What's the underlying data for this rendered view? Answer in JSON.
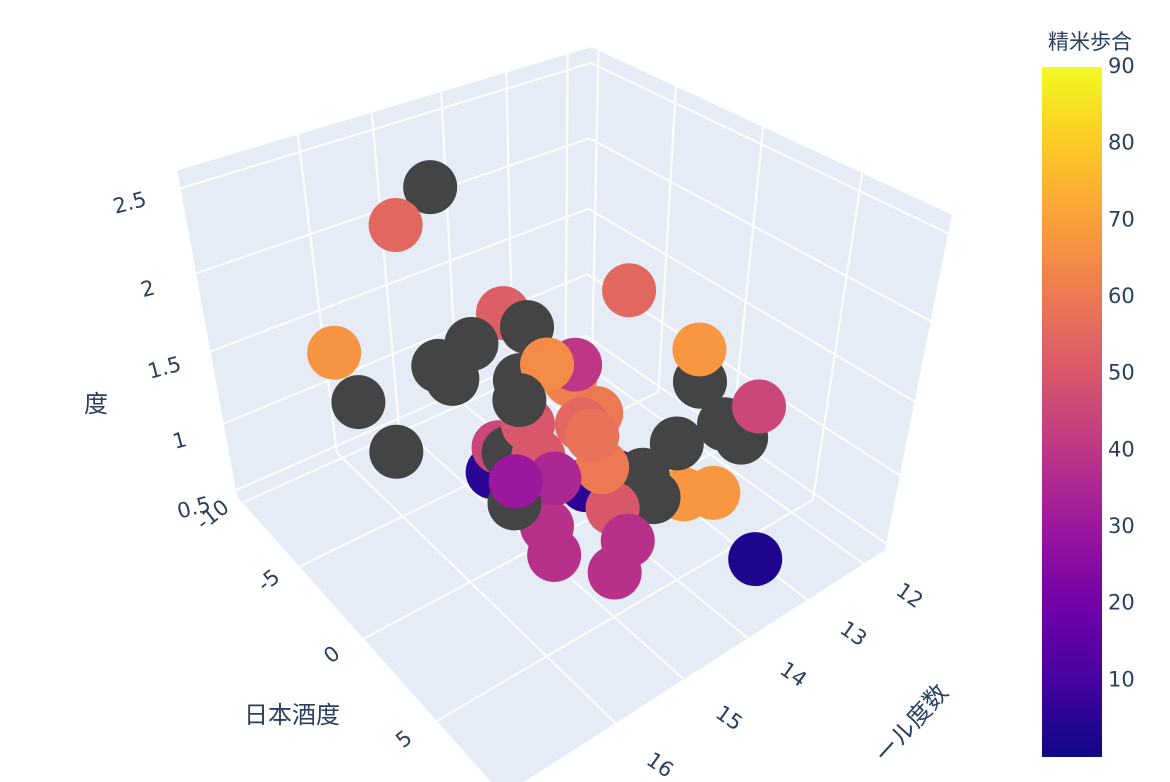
{
  "chart_data": {
    "type": "scatter3d",
    "xaxis_title": "日本酒度",
    "yaxis_title": "ール度数",
    "zaxis_title": "度",
    "x": [
      -6.5,
      -6.5,
      -9.6,
      -7.9,
      -5.05,
      1.45,
      -1.9,
      -0.4,
      -1.65,
      -1.4,
      -0.5,
      -0.9,
      1.3,
      0.8,
      0.4,
      5.25,
      5.4,
      0.1,
      8.25,
      1.7,
      3.45,
      -0.1,
      0.55,
      2.4,
      3.7,
      2.8,
      7.6,
      -0.55,
      2.9,
      3.15,
      3.15,
      5.1,
      3.4,
      5.0,
      5.45,
      2.9,
      5.6,
      6.8,
      7.5,
      4.05,
      3.35,
      3.25,
      4.7,
      4.45,
      2.85,
      1.8
    ],
    "y": [
      15,
      15.5,
      16,
      16,
      16,
      14,
      15,
      15,
      15.5,
      16,
      16,
      15,
      15.5,
      15,
      14.5,
      14,
      14,
      14.5,
      14,
      14.5,
      15,
      15.5,
      15.5,
      15.5,
      13,
      13.5,
      14,
      15.5,
      14.5,
      15,
      16,
      14.5,
      13.5,
      13.5,
      16,
      15.5,
      15,
      15.5,
      13.5,
      15,
      15.5,
      16,
      15,
      14.5,
      15,
      15.5
    ],
    "z": [
      2.37,
      2.22,
      1.27,
      1.05,
      0.93,
      2.09,
      1.9,
      1.92,
      1.82,
      1.8,
      1.79,
      1.55,
      1.7,
      1.78,
      1.65,
      2.01,
      1.83,
      1.53,
      1.91,
      1.44,
      1.55,
      1.28,
      1.3,
      1.44,
      1.21,
      1.11,
      1.67,
      1.07,
      1.12,
      1.2,
      1.32,
      1.18,
      0.8,
      0.96,
      1.21,
      1.02,
      1.06,
      1.1,
      0.73,
      1.4,
      1.38,
      1.47,
      1.19,
      1.27,
      1.57,
      1.59
    ],
    "color": [
      null,
      55,
      67,
      null,
      null,
      55,
      52,
      null,
      null,
      null,
      null,
      null,
      null,
      65,
      40,
      68,
      null,
      62,
      45,
      60,
      58,
      45,
      null,
      50,
      null,
      null,
      null,
      5,
      5,
      5,
      null,
      null,
      68,
      68,
      38,
      38,
      38,
      38,
      3,
      60,
      35,
      30,
      50,
      null,
      55,
      50
    ],
    "missing_color": "#444444",
    "xlim": [
      -10.5,
      9
    ],
    "ylim": [
      11.6,
      17.5
    ],
    "zlim": [
      0.45,
      2.6
    ],
    "xticks": [
      -10,
      -5,
      0,
      5
    ],
    "yticks": [
      12,
      13,
      14,
      15,
      16
    ],
    "zticks": [
      0.5,
      1,
      1.5,
      2,
      2.5
    ],
    "grid": true,
    "colorbar": {
      "title": "精米歩合",
      "clim": [
        0,
        90
      ],
      "ticks": [
        10,
        20,
        30,
        40,
        50,
        60,
        70,
        80,
        90
      ],
      "colorscale": [
        [
          0,
          "#0d0887"
        ],
        [
          0.111,
          "#46039f"
        ],
        [
          0.222,
          "#7201a8"
        ],
        [
          0.333,
          "#9c179e"
        ],
        [
          0.444,
          "#bd3786"
        ],
        [
          0.556,
          "#d8576b"
        ],
        [
          0.667,
          "#ed7953"
        ],
        [
          0.778,
          "#fb9f3a"
        ],
        [
          0.889,
          "#fdca26"
        ],
        [
          1,
          "#f0f921"
        ]
      ]
    }
  }
}
